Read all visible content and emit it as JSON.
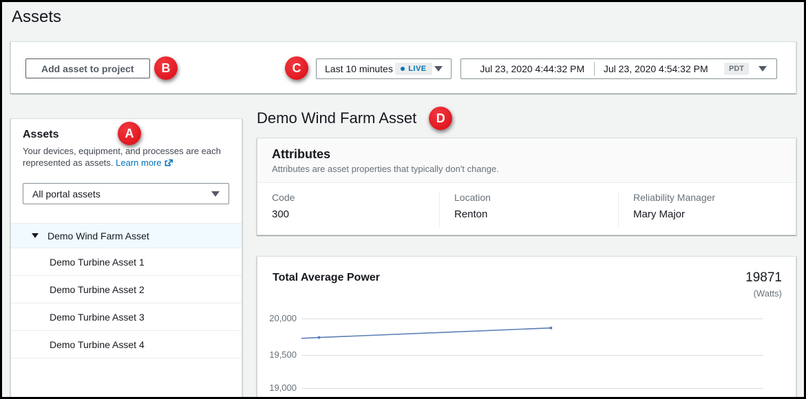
{
  "page": {
    "title": "Assets"
  },
  "annotations": {
    "a": "A",
    "b": "B",
    "c": "C",
    "d": "D"
  },
  "toolbar": {
    "add_button": "Add asset to project",
    "time_range": {
      "label": "Last 10 minutes",
      "live_label": "LIVE"
    },
    "date_start": "Jul 23, 2020 4:44:32 PM",
    "date_end": "Jul 23, 2020 4:54:32 PM",
    "timezone": "PDT"
  },
  "sidebar": {
    "title": "Assets",
    "description": "Your devices, equipment, and processes are each represented as assets. ",
    "learn_more": "Learn more",
    "filter_value": "All portal assets",
    "tree": {
      "parent": "Demo Wind Farm Asset",
      "children": [
        "Demo Turbine Asset 1",
        "Demo Turbine Asset 2",
        "Demo Turbine Asset 3",
        "Demo Turbine Asset 4"
      ]
    }
  },
  "main": {
    "title": "Demo Wind Farm Asset",
    "attributes": {
      "title": "Attributes",
      "subtitle": "Attributes are asset properties that typically don't change.",
      "items": [
        {
          "label": "Code",
          "value": "300"
        },
        {
          "label": "Location",
          "value": "Renton"
        },
        {
          "label": "Reliability Manager",
          "value": "Mary Major"
        }
      ]
    }
  },
  "chart_data": {
    "type": "line",
    "title": "Total Average Power",
    "latest_value": "19871",
    "unit_label": "(Watts)",
    "line_color": "#5b7fb5",
    "x_axis": {
      "start": "Jul 23, 2020 4:44:32 PM",
      "end": "Jul 23, 2020 4:54:32 PM",
      "data_span_fraction": 0.54
    },
    "y_axis": {
      "ticks": [
        20000,
        19500,
        19000
      ],
      "tick_labels": [
        "20,000",
        "19,500",
        "19,000"
      ]
    },
    "series": [
      {
        "name": "Total Average Power",
        "points": [
          {
            "t": 0.0,
            "v": 19728
          },
          {
            "t": 0.07,
            "v": 19740
          },
          {
            "t": 1.0,
            "v": 19871
          }
        ],
        "marker_ts": [
          0.07,
          1.0
        ]
      }
    ]
  },
  "colors": {
    "accent_red": "#e41e26",
    "link_blue": "#0073bb",
    "chart_line": "#5b7fb5",
    "selected_row_bg": "#f1faff"
  }
}
